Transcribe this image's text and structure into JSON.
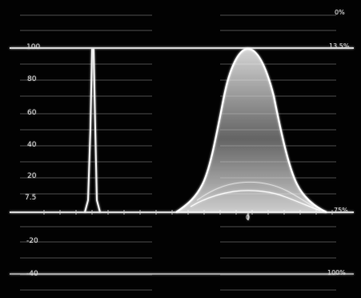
{
  "scope": {
    "ire_labels": [
      "100",
      "80",
      "60",
      "40",
      "20",
      "7.5",
      "-20",
      "-40"
    ],
    "right_labels": {
      "top": "0%",
      "upper": "13.5%",
      "middle": "75%",
      "bottom": "100%"
    },
    "center_marker": "0",
    "colors": {
      "background": "#020202",
      "graticule": "#686868",
      "trace": "#f2f2f2"
    },
    "icons": {
      "crosshair": "center-marker-icon"
    }
  }
}
